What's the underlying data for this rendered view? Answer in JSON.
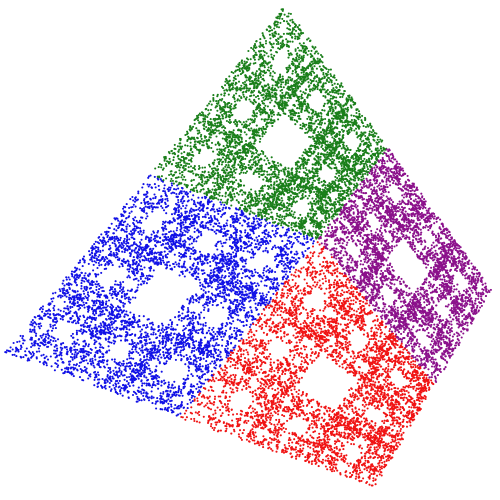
{
  "figure": {
    "background": "#ffffff",
    "point_style": "small scattered dots",
    "regions": [
      {
        "name": "green",
        "color": "#1a7f1a"
      },
      {
        "name": "purple",
        "color": "#8b118b"
      },
      {
        "name": "blue",
        "color": "#1212e6"
      },
      {
        "name": "red",
        "color": "#f01414"
      }
    ]
  }
}
